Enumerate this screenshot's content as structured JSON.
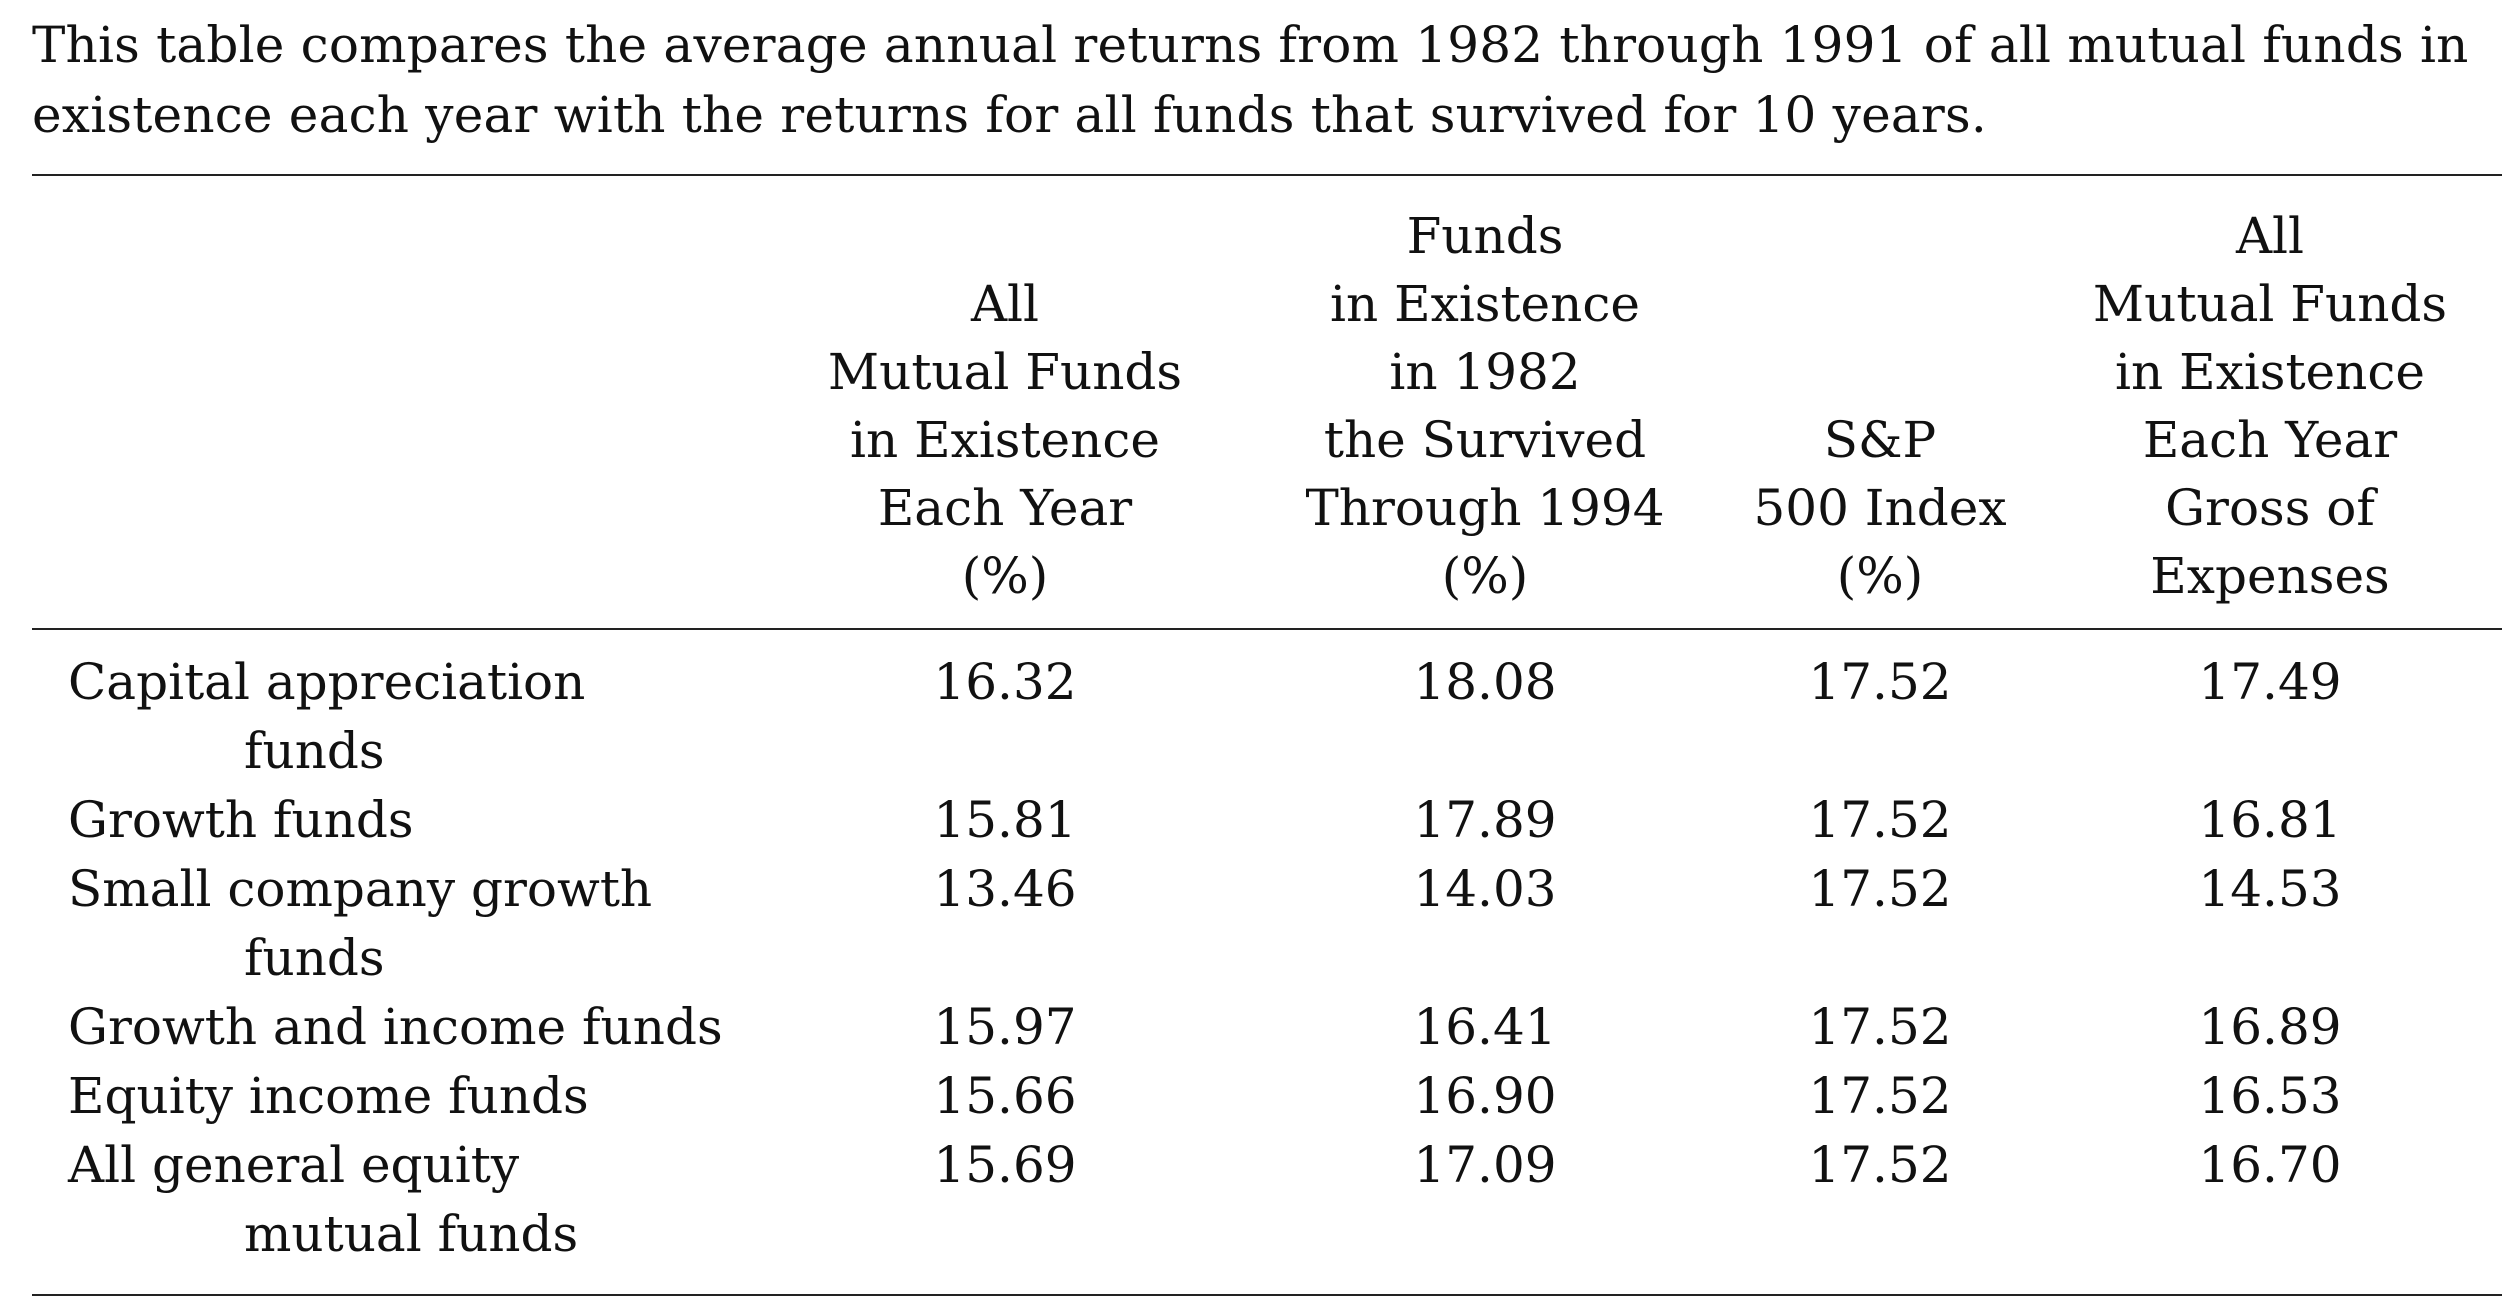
{
  "caption": {
    "line1": "This table compares the average annual returns from 1982 through 1991 of all mutual funds in",
    "line2": "existence each year with the returns for all funds that survived for 10 years."
  },
  "headers": [
    [
      "All",
      "Mutual Funds",
      "in Existence",
      "Each Year",
      "(%)"
    ],
    [
      "Funds",
      "in Existence",
      "in 1982",
      "the Survived",
      "Through 1994",
      "(%)"
    ],
    [
      "S&P",
      "500 Index",
      "(%)"
    ],
    [
      "All",
      "Mutual Funds",
      "in Existence",
      "Each Year",
      "Gross of",
      "Expenses"
    ]
  ],
  "rows": [
    {
      "label": [
        "Capital appreciation",
        "funds"
      ],
      "values": [
        "16.32",
        "18.08",
        "17.52",
        "17.49"
      ]
    },
    {
      "label": [
        "Growth funds"
      ],
      "values": [
        "15.81",
        "17.89",
        "17.52",
        "16.81"
      ]
    },
    {
      "label": [
        "Small company growth",
        "funds"
      ],
      "values": [
        "13.46",
        "14.03",
        "17.52",
        "14.53"
      ]
    },
    {
      "label": [
        "Growth and income funds"
      ],
      "values": [
        "15.97",
        "16.41",
        "17.52",
        "16.89"
      ]
    },
    {
      "label": [
        "Equity income funds"
      ],
      "values": [
        "15.66",
        "16.90",
        "17.52",
        "16.53"
      ]
    },
    {
      "label": [
        "All general equity",
        "mutual funds"
      ],
      "values": [
        "15.69",
        "17.09",
        "17.52",
        "16.70"
      ]
    }
  ]
}
